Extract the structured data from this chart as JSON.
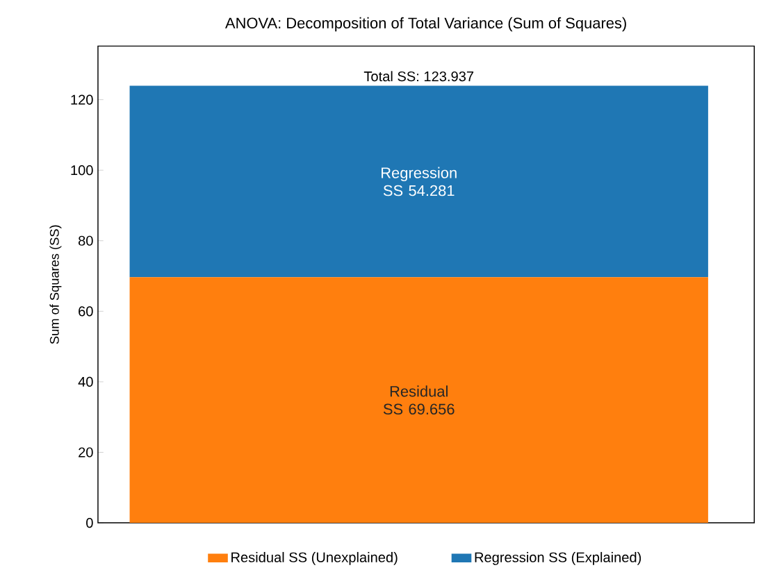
{
  "chart_data": {
    "type": "bar",
    "title": "ANOVA: Decomposition of Total Variance (Sum of Squares)",
    "ylabel": "Sum of Squares (SS)",
    "categories": [
      null
    ],
    "series": [
      {
        "name": "Residual SS (Unexplained)",
        "color": "#ff7f0e",
        "values": [
          69.656
        ],
        "value_labels": [
          "Residual SS 69.656"
        ]
      },
      {
        "name": "Regression SS (Explained)",
        "color": "#1f77b4",
        "values": [
          54.281
        ],
        "value_labels": [
          "Regression SS 54.281"
        ]
      }
    ],
    "stacked": true,
    "totals": [
      "Total SS: 123.937"
    ],
    "ylim": [
      0,
      135.2
    ],
    "yticks": [
      0,
      20,
      40,
      60,
      80,
      100,
      120
    ],
    "grid": false,
    "legend": "bottom"
  }
}
